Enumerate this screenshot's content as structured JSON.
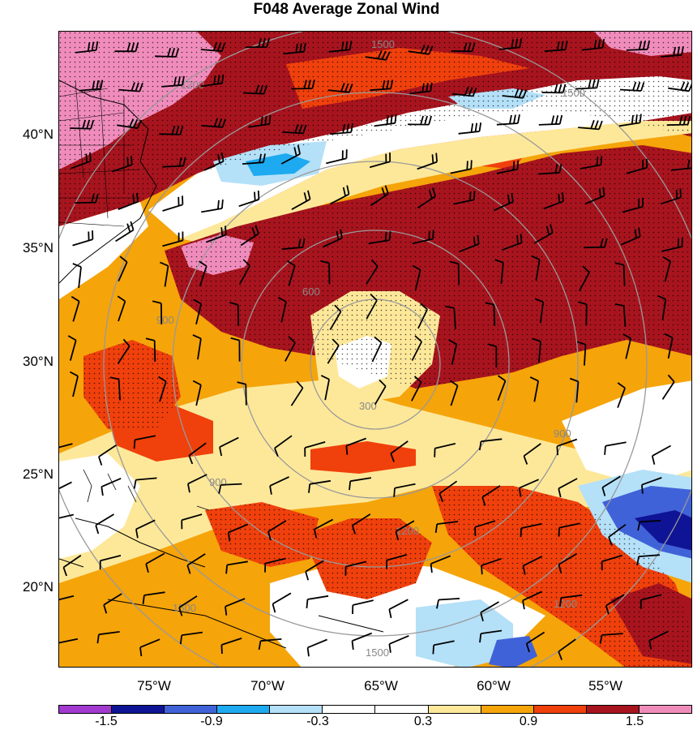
{
  "title": "F048 Average Zonal Wind",
  "latitude_labels": [
    "40°N",
    "35°N",
    "30°N",
    "25°N",
    "20°N"
  ],
  "longitude_labels": [
    "75°W",
    "70°W",
    "65°W",
    "60°W",
    "55°W"
  ],
  "colorbar": {
    "colors": [
      "#a23ad0",
      "#0f1496",
      "#4062d8",
      "#1eaaf0",
      "#b4e0f8",
      "#ffffff",
      "#ffffff",
      "#fde89a",
      "#f5a40a",
      "#f0400c",
      "#a8141e",
      "#f08cbc"
    ],
    "labels": [
      "-1.5",
      "-0.9",
      "-0.3",
      "0.3",
      "0.9",
      "1.5"
    ]
  },
  "contour_labels": [
    "1500",
    "1500",
    "1200",
    "900",
    "600",
    "300",
    "900",
    "900",
    "1200",
    "1500",
    "1200",
    "1500"
  ]
}
